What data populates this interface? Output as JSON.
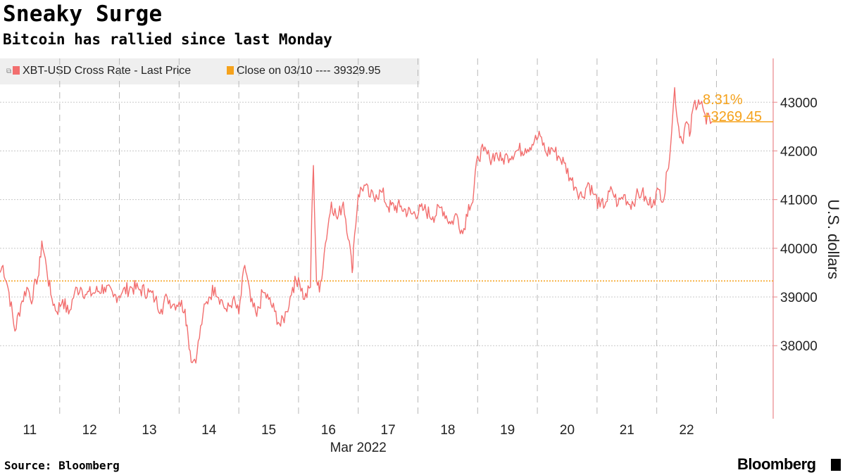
{
  "title": "Sneaky Surge",
  "subtitle": "Bitcoin has rallied since last Monday",
  "source": "Source: Bloomberg",
  "brand": "Bloomberg",
  "colors": {
    "series": "#f26e6e",
    "reference": "#f5a21c",
    "grid": "#c8c8c8",
    "axis": "#e8868a",
    "legend_bg": "#efefef"
  },
  "legend": [
    {
      "label": "XBT-USD Cross Rate - Last Price",
      "color": "#f26e6e"
    },
    {
      "label": "Close on 03/10 ---- 39329.95",
      "color": "#f5a21c"
    }
  ],
  "chart_data": {
    "type": "line",
    "title": "Sneaky Surge",
    "subtitle": "Bitcoin has rallied since last Monday",
    "ylabel": "U.S. dollars",
    "xlabel": "Mar 2022",
    "ylim": [
      36500,
      43900
    ],
    "xlim": [
      10.5,
      23.45
    ],
    "yticks": [
      38000,
      39000,
      40000,
      41000,
      42000,
      43000
    ],
    "yticklabels": [
      "38000",
      "39000",
      "40000",
      "41000",
      "42000",
      "43000"
    ],
    "xticks": [
      11,
      12,
      13,
      14,
      15,
      16,
      17,
      18,
      19,
      20,
      21,
      22
    ],
    "xticklabels": [
      "11",
      "12",
      "13",
      "14",
      "15",
      "16",
      "17",
      "18",
      "19",
      "20",
      "21",
      "22"
    ],
    "grid": true,
    "reference_line": {
      "name": "Close on 03/10 ---- 39329.95",
      "value": 39329.95
    },
    "annotations": {
      "pct_change": "8.31%",
      "abs_change": "+3269.45",
      "last_value": 42599.4
    },
    "series": [
      {
        "name": "XBT-USD Cross Rate - Last Price",
        "x": [
          10.5,
          10.55,
          10.65,
          10.75,
          10.85,
          10.95,
          11.05,
          11.1,
          11.15,
          11.2,
          11.28,
          11.35,
          11.45,
          11.55,
          11.65,
          11.75,
          11.85,
          11.95,
          12.1,
          12.25,
          12.4,
          12.55,
          12.7,
          12.85,
          13.0,
          13.1,
          13.2,
          13.3,
          13.4,
          13.5,
          13.6,
          13.65,
          13.72,
          13.8,
          13.9,
          14.0,
          14.1,
          14.2,
          14.3,
          14.4,
          14.5,
          14.6,
          14.65,
          14.7,
          14.8,
          14.9,
          15.0,
          15.1,
          15.2,
          15.3,
          15.4,
          15.5,
          15.6,
          15.7,
          15.72,
          15.75,
          15.8,
          15.85,
          15.95,
          16.05,
          16.15,
          16.25,
          16.35,
          16.4,
          16.42,
          16.5,
          16.6,
          16.7,
          16.8,
          16.9,
          17.0,
          17.2,
          17.4,
          17.6,
          17.75,
          17.9,
          18.05,
          18.15,
          18.25,
          18.35,
          18.42,
          18.5,
          18.6,
          18.7,
          18.8,
          18.9,
          19.0,
          19.15,
          19.3,
          19.45,
          19.55,
          19.65,
          19.75,
          19.85,
          19.95,
          20.05,
          20.15,
          20.25,
          20.35,
          20.45,
          20.55,
          20.65,
          20.75,
          20.85,
          20.95,
          21.05,
          21.15,
          21.25,
          21.35,
          21.45,
          21.55,
          21.62,
          21.68,
          21.75,
          21.8,
          21.85,
          21.92,
          22.0,
          22.05,
          22.12,
          22.2,
          22.27,
          22.33,
          22.38,
          22.42
        ],
        "values": [
          39500,
          39650,
          39100,
          38300,
          38850,
          39200,
          38950,
          39350,
          39450,
          40150,
          39600,
          39050,
          38700,
          38950,
          38650,
          39100,
          39200,
          39050,
          39100,
          39200,
          39000,
          39100,
          39200,
          39150,
          39100,
          38950,
          38750,
          39000,
          38850,
          38900,
          38750,
          38200,
          37650,
          37850,
          38650,
          39000,
          39200,
          38950,
          38700,
          38950,
          38650,
          39650,
          39350,
          38900,
          38600,
          39100,
          38950,
          38700,
          38400,
          38700,
          39200,
          39400,
          38950,
          39200,
          40600,
          41700,
          39350,
          39100,
          40100,
          40950,
          40600,
          40950,
          40150,
          39500,
          40000,
          41100,
          41300,
          41050,
          41100,
          41150,
          40850,
          40850,
          40700,
          40800,
          40650,
          40850,
          40500,
          40700,
          40300,
          40900,
          40950,
          41900,
          42000,
          41850,
          41950,
          41800,
          41900,
          42000,
          42050,
          42200,
          42300,
          41950,
          42050,
          41900,
          41750,
          41450,
          41250,
          41050,
          41350,
          41100,
          40850,
          40950,
          41200,
          40900,
          41100,
          40900,
          41050,
          41150,
          40900,
          41000,
          41200,
          41000,
          41600,
          42400,
          43300,
          42600,
          42200,
          42600,
          42300,
          42950,
          43050,
          42900,
          42550,
          42700,
          42599
        ]
      }
    ]
  }
}
